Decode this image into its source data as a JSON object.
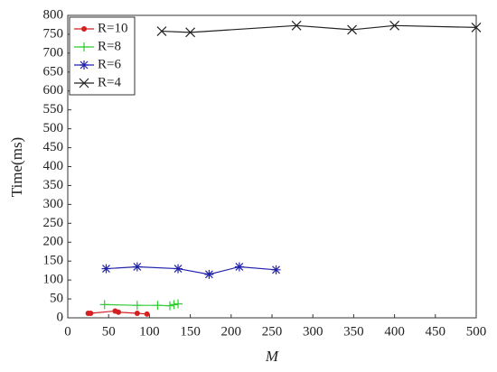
{
  "chart_data": {
    "type": "line",
    "x_label": "M",
    "y_label": "Time(ms)",
    "xlim": [
      0,
      500
    ],
    "xticks": [
      0,
      50,
      100,
      150,
      200,
      250,
      300,
      350,
      400,
      450,
      500
    ],
    "ylim": [
      0,
      800
    ],
    "yticks": [
      0,
      50,
      100,
      150,
      200,
      250,
      300,
      350,
      400,
      450,
      500,
      550,
      600,
      650,
      700,
      750,
      800
    ],
    "grid": false,
    "legend": "upper-left",
    "series": [
      {
        "name": "R=10",
        "color": "#d42020",
        "marker": "dot",
        "x": [
          25,
          28,
          58,
          62,
          85,
          97
        ],
        "values": [
          12,
          12,
          18,
          15,
          12,
          10
        ]
      },
      {
        "name": "R=8",
        "color": "#33cc33",
        "marker": "plus",
        "x": [
          45,
          85,
          110,
          125,
          130,
          135
        ],
        "values": [
          35,
          33,
          33,
          32,
          35,
          37
        ]
      },
      {
        "name": "R=6",
        "color": "#2222aa",
        "marker": "star",
        "x": [
          47,
          85,
          135,
          173,
          210,
          255
        ],
        "values": [
          130,
          135,
          130,
          115,
          135,
          127
        ]
      },
      {
        "name": "R=4",
        "color": "#222222",
        "marker": "cross",
        "x": [
          115,
          150,
          280,
          348,
          400,
          500
        ],
        "values": [
          758,
          755,
          773,
          762,
          773,
          768
        ]
      }
    ]
  }
}
